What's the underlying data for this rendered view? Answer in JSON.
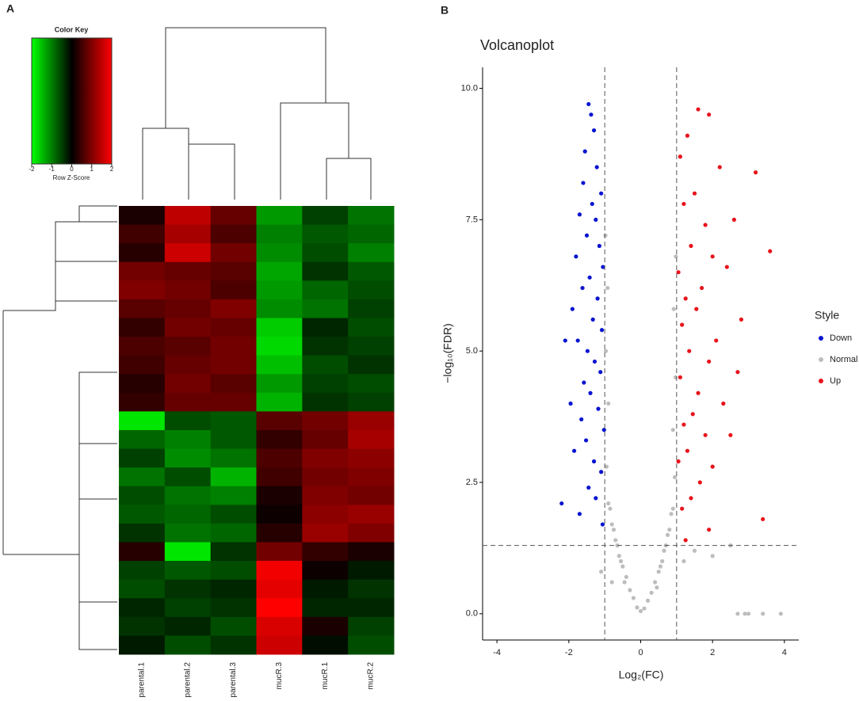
{
  "chart_data": [
    {
      "type": "heatmap",
      "panel": "A",
      "key_title": "Color Key",
      "key_label": "Row Z-Score",
      "zlim": [
        -2,
        2
      ],
      "key_ticks": [
        -2,
        -1,
        0,
        1,
        2
      ],
      "colors": {
        "low": "#00ff00",
        "mid": "#000000",
        "high": "#ff0000"
      },
      "columns": [
        "parental.1",
        "parental.2",
        "parental.3",
        "mucR.3",
        "mucR.1",
        "mucR.2"
      ],
      "values": [
        [
          0.2,
          1.5,
          0.8,
          -1.2,
          -0.5,
          -0.9
        ],
        [
          0.5,
          1.3,
          0.6,
          -1.0,
          -0.7,
          -0.8
        ],
        [
          0.3,
          1.6,
          0.9,
          -1.1,
          -0.6,
          -1.0
        ],
        [
          0.9,
          0.8,
          0.7,
          -1.3,
          -0.4,
          -0.7
        ],
        [
          1.0,
          0.9,
          0.6,
          -1.2,
          -0.8,
          -0.6
        ],
        [
          0.7,
          0.8,
          1.0,
          -1.1,
          -0.9,
          -0.5
        ],
        [
          0.4,
          0.9,
          0.8,
          -1.6,
          -0.3,
          -0.6
        ],
        [
          0.6,
          0.7,
          0.9,
          -1.7,
          -0.4,
          -0.5
        ],
        [
          0.5,
          0.8,
          0.9,
          -1.5,
          -0.6,
          -0.4
        ],
        [
          0.3,
          0.9,
          0.7,
          -1.2,
          -0.5,
          -0.6
        ],
        [
          0.4,
          0.8,
          0.8,
          -1.4,
          -0.4,
          -0.5
        ],
        [
          -1.8,
          -0.6,
          -0.7,
          0.7,
          0.9,
          1.2
        ],
        [
          -0.8,
          -1.0,
          -0.7,
          0.4,
          0.8,
          1.3
        ],
        [
          -0.5,
          -1.1,
          -0.9,
          0.6,
          1.0,
          1.1
        ],
        [
          -0.9,
          -0.6,
          -1.4,
          0.5,
          0.9,
          1.0
        ],
        [
          -0.6,
          -0.9,
          -1.0,
          0.2,
          1.0,
          0.9
        ],
        [
          -0.7,
          -0.8,
          -0.6,
          0.1,
          1.1,
          1.2
        ],
        [
          -0.4,
          -0.9,
          -0.8,
          0.3,
          1.2,
          1.0
        ],
        [
          0.3,
          -1.8,
          -0.4,
          0.9,
          0.4,
          0.2
        ],
        [
          -0.5,
          -0.7,
          -0.6,
          1.9,
          0.1,
          -0.2
        ],
        [
          -0.6,
          -0.4,
          -0.3,
          1.8,
          -0.2,
          -0.4
        ],
        [
          -0.3,
          -0.5,
          -0.4,
          2.0,
          -0.3,
          -0.3
        ],
        [
          -0.4,
          -0.3,
          -0.6,
          1.7,
          0.2,
          -0.5
        ],
        [
          -0.2,
          -0.6,
          -0.4,
          1.6,
          -0.1,
          -0.6
        ]
      ]
    },
    {
      "type": "scatter",
      "panel": "B",
      "title": "Volcanoplot",
      "x_label": "Log₂(FC)",
      "y_label": "−log₁₀(FDR)",
      "xlim": [
        -4.4,
        4.4
      ],
      "ylim": [
        -0.5,
        10.4
      ],
      "xticks": [
        -4,
        -2,
        0,
        2,
        4
      ],
      "yticks": [
        {
          "value": 0,
          "label": "0.0"
        },
        {
          "value": 2.5,
          "label": "2.5"
        },
        {
          "value": 5,
          "label": "5.0"
        },
        {
          "value": 7.5,
          "label": "7.5"
        },
        {
          "value": 10,
          "label": "10.0"
        }
      ],
      "vlines": [
        -1,
        1
      ],
      "hline": 1.3,
      "legend_title": "Style",
      "legend": "right",
      "series": [
        {
          "name": "Down",
          "color": "#0a14d0",
          "x": [
            -1.45,
            -1.38,
            -1.3,
            -1.55,
            -1.22,
            -1.6,
            -1.1,
            -1.35,
            -1.7,
            -1.25,
            -1.5,
            -1.15,
            -1.8,
            -1.05,
            -1.42,
            -1.62,
            -1.2,
            -1.9,
            -1.33,
            -1.08,
            -1.75,
            -1.48,
            -1.28,
            -2.1,
            -1.12,
            -1.58,
            -1.4,
            -1.95,
            -1.18,
            -1.65,
            -1.02,
            -1.52,
            -1.85,
            -1.3,
            -1.1,
            -2.2,
            -1.45,
            -1.25,
            -1.7,
            -1.06
          ],
          "values": [
            9.7,
            9.5,
            9.2,
            8.8,
            8.5,
            8.2,
            8.0,
            7.8,
            7.6,
            7.5,
            7.2,
            7.0,
            6.8,
            6.6,
            6.4,
            6.2,
            6.0,
            5.8,
            5.6,
            5.4,
            5.2,
            5.0,
            4.8,
            5.2,
            4.6,
            4.4,
            4.2,
            4.0,
            3.9,
            3.7,
            3.5,
            3.3,
            3.1,
            2.9,
            2.7,
            2.1,
            2.4,
            2.2,
            1.9,
            1.7
          ]
        },
        {
          "name": "Normal",
          "color": "#bdbdbd",
          "x": [
            0,
            0.1,
            -0.1,
            0.2,
            -0.2,
            0.3,
            -0.3,
            0.4,
            -0.4,
            0.5,
            -0.5,
            0.6,
            -0.6,
            0.7,
            -0.7,
            0.8,
            -0.8,
            0.9,
            -0.9,
            0.95,
            -0.95,
            0.85,
            -0.85,
            0.75,
            -0.75,
            0.65,
            -0.65,
            0.55,
            -0.55,
            0.45,
            -0.45,
            0.9,
            -0.9,
            0.97,
            -0.97,
            0.92,
            -0.92,
            0.98,
            -0.98,
            1.2,
            -1.1,
            1.5,
            2.0,
            2.5,
            3.0,
            3.4,
            3.9,
            2.7,
            2.9,
            -0.8
          ],
          "values": [
            0.05,
            0.1,
            0.12,
            0.25,
            0.3,
            0.4,
            0.45,
            0.6,
            0.7,
            0.8,
            0.9,
            1.0,
            1.1,
            1.3,
            1.4,
            1.6,
            1.7,
            2.0,
            2.1,
            2.6,
            2.8,
            1.9,
            2.0,
            1.5,
            1.6,
            1.2,
            1.3,
            0.9,
            1.0,
            0.5,
            0.6,
            3.5,
            4.0,
            4.5,
            5.0,
            5.8,
            6.2,
            6.8,
            7.2,
            1.0,
            0.8,
            1.2,
            1.1,
            1.3,
            0.0,
            0.0,
            0.0,
            0.0,
            0.0,
            0.6
          ]
        },
        {
          "name": "Up",
          "color": "#e8141c",
          "x": [
            1.6,
            1.9,
            1.3,
            1.1,
            2.2,
            3.2,
            1.5,
            1.2,
            2.6,
            1.8,
            3.6,
            1.4,
            2.0,
            1.05,
            2.4,
            1.7,
            1.25,
            2.8,
            1.55,
            1.15,
            2.1,
            1.35,
            1.9,
            2.7,
            1.1,
            1.6,
            2.3,
            1.45,
            1.2,
            1.8,
            2.5,
            1.3,
            1.05,
            2.0,
            1.65,
            3.4,
            1.4,
            1.15,
            1.9,
            1.25
          ],
          "values": [
            9.6,
            9.5,
            9.1,
            8.7,
            8.5,
            8.4,
            8.0,
            7.8,
            7.5,
            7.4,
            6.9,
            7.0,
            6.8,
            6.5,
            6.6,
            6.2,
            6.0,
            5.6,
            5.8,
            5.5,
            5.2,
            5.0,
            4.8,
            4.6,
            4.5,
            4.2,
            4.0,
            3.8,
            3.6,
            3.4,
            3.4,
            3.1,
            2.9,
            2.8,
            2.5,
            1.8,
            2.2,
            2.0,
            1.6,
            1.4
          ]
        }
      ]
    }
  ]
}
